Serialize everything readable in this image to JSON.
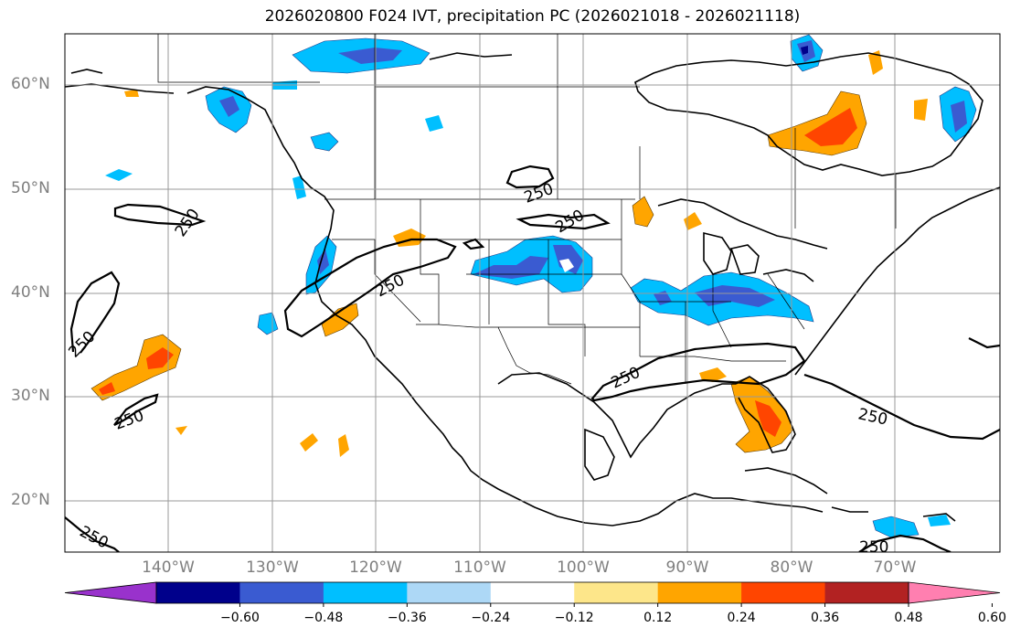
{
  "map": {
    "title": "2026020800 F024 IVT, precipitation PC (2026021018 - 2026021118)",
    "latitude_labels": [
      "60°N",
      "50°N",
      "40°N",
      "30°N",
      "20°N"
    ],
    "longitude_labels": [
      "140°W",
      "130°W",
      "120°W",
      "110°W",
      "100°W",
      "90°W",
      "80°W",
      "70°W"
    ],
    "contour_label": "250",
    "colorbar": {
      "tick_labels": [
        "−0.60",
        "−0.48",
        "−0.36",
        "−0.24",
        "−0.12",
        "0.12",
        "0.24",
        "0.36",
        "0.48",
        "0.60"
      ],
      "colors": [
        "#9932cc",
        "#00008b",
        "#3a5bd1",
        "#00bfff",
        "#add8f6",
        "#ffffff",
        "#fde68a",
        "#ffa500",
        "#ff4500",
        "#b22222",
        "#ff7fb0"
      ]
    }
  }
}
